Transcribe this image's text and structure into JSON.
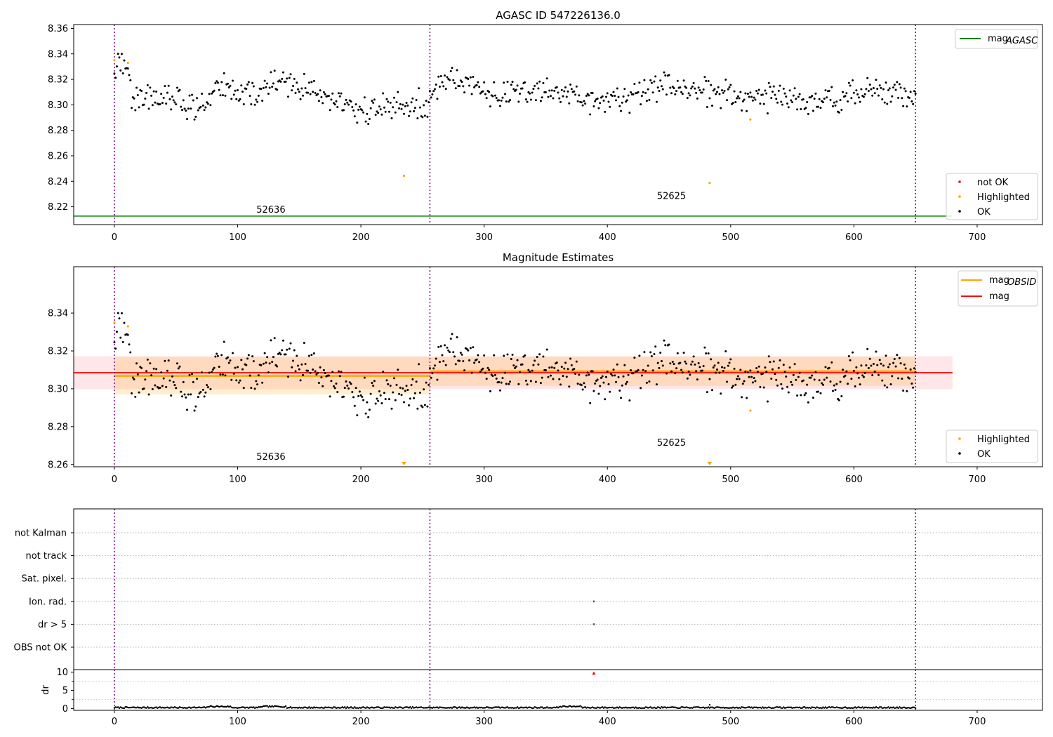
{
  "chart_data": [
    {
      "type": "scatter",
      "title": "AGASC ID 547226136.0",
      "xlim": [
        -33,
        753
      ],
      "ylim": [
        8.206,
        8.363
      ],
      "xticks": [
        0,
        100,
        200,
        300,
        400,
        500,
        600,
        700
      ],
      "xtick_labels": [
        "0",
        "100",
        "200",
        "300",
        "400",
        "500",
        "600",
        "700"
      ],
      "yticks": [
        8.22,
        8.24,
        8.26,
        8.28,
        8.3,
        8.32,
        8.34,
        8.36
      ],
      "ytick_labels": [
        "8.22",
        "8.24",
        "8.26",
        "8.28",
        "8.30",
        "8.32",
        "8.34",
        "8.36"
      ],
      "vlines": [
        0,
        256,
        650
      ],
      "hline": {
        "name": "mag_AGASC",
        "value": 8.2127,
        "x_range": [
          -33,
          680
        ],
        "color": "#008000"
      },
      "annotations": [
        {
          "text": "52636",
          "x": 127,
          "y": 8.2155
        },
        {
          "text": "52625",
          "x": 452,
          "y": 8.2262
        }
      ],
      "legend_top": {
        "placement": "top-right",
        "entries": [
          {
            "label": "mag",
            "sub": "AGASC",
            "kind": "line",
            "color": "#008000"
          }
        ]
      },
      "legend_bottom": {
        "placement": "lower-right",
        "entries": [
          {
            "label": "not OK",
            "color": "#ff0000"
          },
          {
            "label": "Highlighted",
            "color": "#ffa500"
          },
          {
            "label": "OK",
            "color": "#000000"
          }
        ]
      },
      "highlighted_points": [
        [
          0,
          8.335
        ],
        [
          11,
          8.333
        ],
        [
          235,
          8.2443
        ],
        [
          483,
          8.2387
        ],
        [
          516,
          8.2885
        ]
      ],
      "segments": [
        {
          "x_range": [
            0,
            255
          ],
          "anchors": [
            [
              0,
              8.331
            ],
            [
              10,
              8.33
            ],
            [
              14,
              8.306
            ],
            [
              30,
              8.306
            ],
            [
              50,
              8.303
            ],
            [
              70,
              8.296
            ],
            [
              80,
              8.306
            ],
            [
              88,
              8.318
            ],
            [
              100,
              8.308
            ],
            [
              120,
              8.31
            ],
            [
              135,
              8.32
            ],
            [
              145,
              8.316
            ],
            [
              165,
              8.308
            ],
            [
              180,
              8.302
            ],
            [
              195,
              8.296
            ],
            [
              210,
              8.295
            ],
            [
              230,
              8.3
            ],
            [
              255,
              8.296
            ]
          ],
          "noise": 0.0055
        },
        {
          "x_range": [
            256,
            650
          ],
          "anchors": [
            [
              256,
              8.312
            ],
            [
              270,
              8.321
            ],
            [
              290,
              8.316
            ],
            [
              310,
              8.307
            ],
            [
              340,
              8.311
            ],
            [
              370,
              8.307
            ],
            [
              390,
              8.304
            ],
            [
              420,
              8.306
            ],
            [
              450,
              8.316
            ],
            [
              480,
              8.309
            ],
            [
              500,
              8.309
            ],
            [
              530,
              8.306
            ],
            [
              560,
              8.302
            ],
            [
              590,
              8.307
            ],
            [
              620,
              8.311
            ],
            [
              650,
              8.307
            ]
          ],
          "noise": 0.0055
        }
      ]
    },
    {
      "type": "scatter",
      "title": "Magnitude Estimates",
      "xlim": [
        -33,
        753
      ],
      "ylim": [
        8.2588,
        8.3645
      ],
      "xticks": [
        0,
        100,
        200,
        300,
        400,
        500,
        600,
        700
      ],
      "xtick_labels": [
        "0",
        "100",
        "200",
        "300",
        "400",
        "500",
        "600",
        "700"
      ],
      "yticks": [
        8.26,
        8.28,
        8.3,
        8.32,
        8.34
      ],
      "ytick_labels": [
        "8.26",
        "8.28",
        "8.30",
        "8.32",
        "8.34"
      ],
      "vlines": [
        0,
        256,
        650
      ],
      "mag_band": {
        "value": 8.3085,
        "low": 8.2998,
        "high": 8.3172,
        "x_range": [
          -33,
          680
        ]
      },
      "obsid_mags": [
        {
          "x_range": [
            0,
            256
          ],
          "value": 8.3068,
          "low": 8.297,
          "high": 8.3168
        },
        {
          "x_range": [
            256,
            650
          ],
          "value": 8.3093,
          "low": 8.3015,
          "high": 8.317
        }
      ],
      "annotations": [
        {
          "text": "52636",
          "x": 127,
          "y": 8.2625
        },
        {
          "text": "52625",
          "x": 452,
          "y": 8.27
        }
      ],
      "legend_top": {
        "placement": "top-right",
        "entries": [
          {
            "label": "mag",
            "sub": "OBSID",
            "kind": "line",
            "color": "#ffa500"
          },
          {
            "label": "mag",
            "sub": "",
            "kind": "line",
            "color": "#ff0000"
          }
        ]
      },
      "legend_bottom": {
        "placement": "lower-right",
        "entries": [
          {
            "label": "Highlighted",
            "color": "#ffa500"
          },
          {
            "label": "OK",
            "color": "#000000"
          }
        ]
      },
      "highlighted_points": [
        [
          0,
          8.335
        ],
        [
          11,
          8.333
        ],
        [
          516,
          8.2885
        ]
      ],
      "offscale_markers": [
        235,
        483
      ]
    },
    {
      "type": "scatter",
      "title": "",
      "categories": [
        "not Kalman",
        "not track",
        "Sat. pixel.",
        "Ion. rad.",
        "dr > 5",
        "OBS not OK"
      ],
      "flag_points": [
        {
          "category": "Ion. rad.",
          "x": 389
        },
        {
          "category": "dr > 5",
          "x": 389
        }
      ],
      "vlines": [
        0,
        256,
        650
      ],
      "xlim": [
        -33,
        753
      ]
    },
    {
      "type": "scatter",
      "ylabel": "dr",
      "xlim": [
        -33,
        753
      ],
      "ylim": [
        -0.5,
        10.7
      ],
      "xticks": [
        0,
        100,
        200,
        300,
        400,
        500,
        600,
        700
      ],
      "xtick_labels": [
        "0",
        "100",
        "200",
        "300",
        "400",
        "500",
        "600",
        "700"
      ],
      "yticks": [
        0,
        5,
        10
      ],
      "ytick_labels": [
        "0",
        "5",
        "10"
      ],
      "vlines": [
        0,
        256,
        650
      ],
      "outlier": {
        "x": 389,
        "y": 9.8,
        "color": "#ff0000"
      }
    }
  ]
}
